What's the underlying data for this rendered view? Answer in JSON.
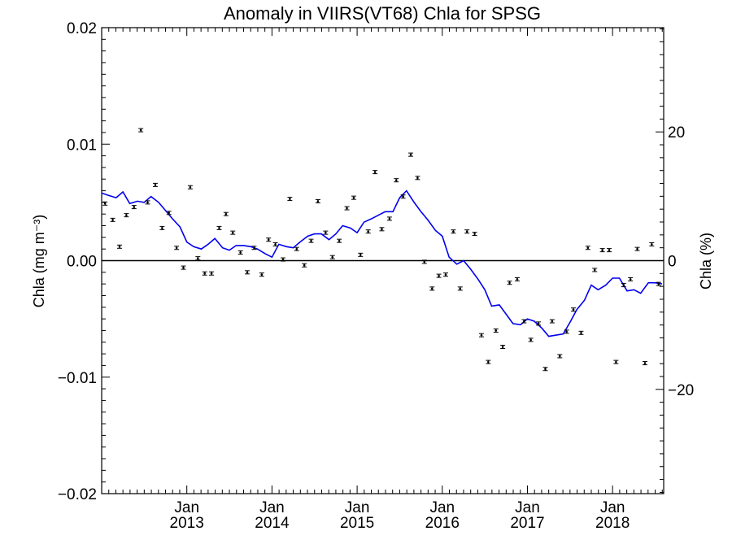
{
  "chart_data": {
    "type": "line",
    "title": "Anomaly in VIIRS(VT68) Chla for SPSG",
    "ylabel_left": "Chla (mg m⁻³)",
    "ylabel_right": "Chla (%)",
    "xlabel": "",
    "ylim_left": [
      -0.02,
      0.02
    ],
    "ylim_right": [
      -36.2,
      36.2
    ],
    "xlim": [
      2012.0,
      2018.6
    ],
    "x_tick_labels": [
      {
        "x": 2013.0,
        "month": "Jan",
        "year": "2013"
      },
      {
        "x": 2014.0,
        "month": "Jan",
        "year": "2014"
      },
      {
        "x": 2015.0,
        "month": "Jan",
        "year": "2015"
      },
      {
        "x": 2016.0,
        "month": "Jan",
        "year": "2016"
      },
      {
        "x": 2017.0,
        "month": "Jan",
        "year": "2017"
      },
      {
        "x": 2018.0,
        "month": "Jan",
        "year": "2018"
      }
    ],
    "y_tick_labels_left": [
      {
        "v": 0.02,
        "label": "0.02"
      },
      {
        "v": 0.01,
        "label": "0.01"
      },
      {
        "v": 0.0,
        "label": "0.00"
      },
      {
        "v": -0.01,
        "label": "−0.01"
      },
      {
        "v": -0.02,
        "label": "−0.02"
      }
    ],
    "y_tick_labels_right": [
      {
        "v": 20,
        "label": "20"
      },
      {
        "v": 0,
        "label": "0"
      },
      {
        "v": -20,
        "label": "−20"
      }
    ],
    "grid": false,
    "colors": {
      "line": "#0000ee",
      "points": "#000000",
      "zero_line": "#000000"
    },
    "series": [
      {
        "kind": "monthly_points_with_error_bars",
        "x": [
          2012.04,
          2012.13,
          2012.21,
          2012.29,
          2012.38,
          2012.46,
          2012.54,
          2012.63,
          2012.71,
          2012.79,
          2012.88,
          2012.96,
          2013.04,
          2013.13,
          2013.21,
          2013.29,
          2013.38,
          2013.46,
          2013.54,
          2013.63,
          2013.71,
          2013.79,
          2013.88,
          2013.96,
          2014.04,
          2014.13,
          2014.21,
          2014.29,
          2014.38,
          2014.46,
          2014.54,
          2014.63,
          2014.71,
          2014.79,
          2014.88,
          2014.96,
          2015.04,
          2015.13,
          2015.21,
          2015.29,
          2015.38,
          2015.46,
          2015.54,
          2015.63,
          2015.71,
          2015.79,
          2015.88,
          2015.96,
          2016.04,
          2016.13,
          2016.21,
          2016.29,
          2016.38,
          2016.46,
          2016.54,
          2016.63,
          2016.71,
          2016.79,
          2016.88,
          2016.96,
          2017.04,
          2017.13,
          2017.21,
          2017.29,
          2017.38,
          2017.46,
          2017.54,
          2017.63,
          2017.71,
          2017.79,
          2017.88,
          2017.96,
          2018.04,
          2018.13,
          2018.21,
          2018.29,
          2018.38,
          2018.46,
          2018.54
        ],
        "y": [
          0.0049,
          0.0035,
          0.0012,
          0.0039,
          0.0046,
          0.0112,
          0.005,
          0.0065,
          0.0028,
          0.0041,
          0.0011,
          -0.0006,
          0.0063,
          0.0002,
          -0.0011,
          -0.0011,
          0.0028,
          0.004,
          0.0024,
          0.0007,
          -0.001,
          0.0011,
          -0.0012,
          0.0018,
          0.0014,
          0.0001,
          0.0053,
          0.001,
          -0.0004,
          0.0017,
          0.0051,
          0.0024,
          0.0003,
          0.0017,
          0.0045,
          0.0054,
          0.0005,
          0.0025,
          0.0076,
          0.0027,
          0.0036,
          0.0069,
          0.0055,
          0.0091,
          0.0071,
          -0.0001,
          -0.0024,
          -0.0013,
          -0.0012,
          0.0025,
          -0.0024,
          0.0025,
          0.0023,
          -0.0064,
          -0.0087,
          -0.006,
          -0.0074,
          -0.0019,
          -0.0016,
          -0.0052,
          -0.0068,
          -0.0054,
          -0.0093,
          -0.0052,
          -0.0082,
          -0.0061,
          -0.0042,
          -0.0062,
          0.0011,
          -0.0008,
          0.0009,
          0.0009,
          -0.0087,
          -0.0021,
          -0.0016,
          0.001,
          -0.0088,
          0.0014,
          -0.002
        ]
      },
      {
        "kind": "running_mean_line",
        "x": [
          2012.0,
          2012.08,
          2012.17,
          2012.25,
          2012.33,
          2012.42,
          2012.5,
          2012.58,
          2012.67,
          2012.75,
          2012.83,
          2012.92,
          2013.0,
          2013.08,
          2013.17,
          2013.25,
          2013.33,
          2013.42,
          2013.5,
          2013.58,
          2013.67,
          2013.75,
          2013.83,
          2013.92,
          2014.0,
          2014.08,
          2014.17,
          2014.25,
          2014.33,
          2014.42,
          2014.5,
          2014.58,
          2014.67,
          2014.75,
          2014.83,
          2014.92,
          2015.0,
          2015.08,
          2015.17,
          2015.25,
          2015.33,
          2015.42,
          2015.5,
          2015.58,
          2015.67,
          2015.75,
          2015.83,
          2015.92,
          2016.0,
          2016.08,
          2016.17,
          2016.25,
          2016.33,
          2016.42,
          2016.5,
          2016.58,
          2016.67,
          2016.75,
          2016.83,
          2016.92,
          2017.0,
          2017.08,
          2017.17,
          2017.25,
          2017.33,
          2017.42,
          2017.5,
          2017.58,
          2017.67,
          2017.75,
          2017.83,
          2017.92,
          2018.0,
          2018.08,
          2018.17,
          2018.25,
          2018.33,
          2018.42,
          2018.5,
          2018.58
        ],
        "y": [
          0.0058,
          0.0056,
          0.0054,
          0.0059,
          0.0049,
          0.0051,
          0.005,
          0.0055,
          0.005,
          0.0043,
          0.0036,
          0.0029,
          0.0016,
          0.0012,
          0.001,
          0.0014,
          0.0019,
          0.0011,
          0.0009,
          0.0013,
          0.0013,
          0.0012,
          0.001,
          0.0006,
          0.0003,
          0.0014,
          0.0012,
          0.0011,
          0.0016,
          0.0021,
          0.0023,
          0.0023,
          0.0018,
          0.0023,
          0.003,
          0.0028,
          0.0024,
          0.0033,
          0.0036,
          0.0039,
          0.0042,
          0.0042,
          0.0054,
          0.006,
          0.005,
          0.0042,
          0.0035,
          0.0026,
          0.0021,
          0.0003,
          -0.0003,
          0.0,
          -0.0007,
          -0.0016,
          -0.0025,
          -0.0039,
          -0.0038,
          -0.0046,
          -0.0054,
          -0.0055,
          -0.005,
          -0.0052,
          -0.0058,
          -0.0065,
          -0.0064,
          -0.0063,
          -0.0053,
          -0.0042,
          -0.0034,
          -0.0021,
          -0.0025,
          -0.0021,
          -0.0015,
          -0.0015,
          -0.0026,
          -0.0025,
          -0.0028,
          -0.0019,
          -0.0019,
          -0.002
        ]
      }
    ]
  }
}
